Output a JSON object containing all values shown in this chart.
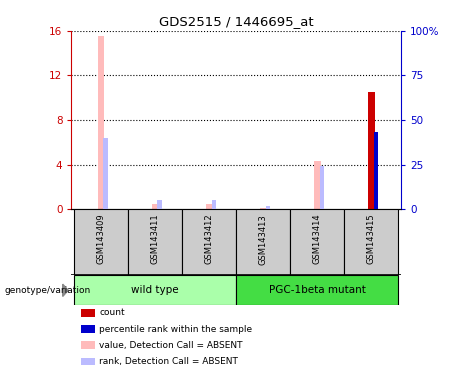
{
  "title": "GDS2515 / 1446695_at",
  "samples": [
    "GSM143409",
    "GSM143411",
    "GSM143412",
    "GSM143413",
    "GSM143414",
    "GSM143415"
  ],
  "bar_data": [
    {
      "sample_idx": 0,
      "value_absent": 15.5,
      "rank_absent": 40.0,
      "count": null,
      "percentile": null
    },
    {
      "sample_idx": 1,
      "value_absent": 0.45,
      "rank_absent": 5.0,
      "count": null,
      "percentile": null
    },
    {
      "sample_idx": 2,
      "value_absent": 0.45,
      "rank_absent": 5.0,
      "count": null,
      "percentile": null
    },
    {
      "sample_idx": 3,
      "value_absent": 0.12,
      "rank_absent": 2.0,
      "count": null,
      "percentile": null
    },
    {
      "sample_idx": 4,
      "value_absent": 4.3,
      "rank_absent": 24.0,
      "count": null,
      "percentile": null
    },
    {
      "sample_idx": 5,
      "value_absent": null,
      "rank_absent": null,
      "count": 10.5,
      "percentile": 43.0
    }
  ],
  "ylim_left": [
    0,
    16
  ],
  "ylim_right": [
    0,
    100
  ],
  "yticks_left": [
    0,
    4,
    8,
    12,
    16
  ],
  "yticks_right": [
    0,
    25,
    50,
    75,
    100
  ],
  "ytick_labels_right": [
    "0",
    "25",
    "50",
    "75",
    "100%"
  ],
  "left_axis_color": "#cc0000",
  "right_axis_color": "#0000cc",
  "color_value_absent": "#ffbbbb",
  "color_rank_absent": "#bbbbff",
  "color_count": "#cc0000",
  "color_percentile": "#0000cc",
  "bar_width": 0.12,
  "group_colors": [
    "#aaffaa",
    "#44dd44"
  ],
  "group_names": [
    "wild type",
    "PGC-1beta mutant"
  ],
  "group_sample_ranges": [
    [
      0,
      2
    ],
    [
      3,
      5
    ]
  ]
}
